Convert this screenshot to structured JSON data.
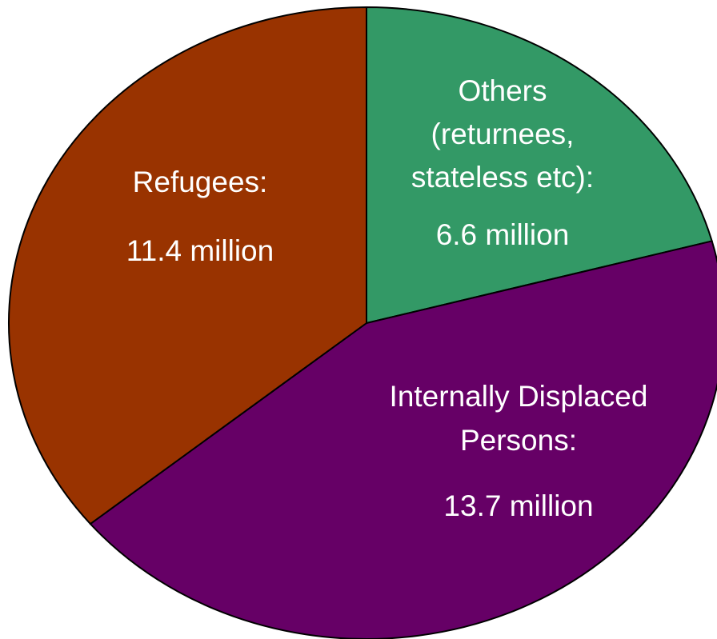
{
  "chart_data": {
    "type": "pie",
    "slices": [
      {
        "key": "others",
        "label_lines": [
          "Others",
          "(returnees,",
          "stateless etc):"
        ],
        "value_label": "6.6 million",
        "value": 6.6,
        "color": "#339966"
      },
      {
        "key": "idp",
        "label_lines": [
          "Internally Displaced",
          "Persons:"
        ],
        "value_label": "13.7 million",
        "value": 13.7,
        "color": "#660066"
      },
      {
        "key": "refugees",
        "label_lines": [
          "Refugees:"
        ],
        "value_label": "11.4 million",
        "value": 11.4,
        "color": "#993300"
      }
    ],
    "start": "top",
    "direction": "clockwise",
    "legend": "none"
  }
}
